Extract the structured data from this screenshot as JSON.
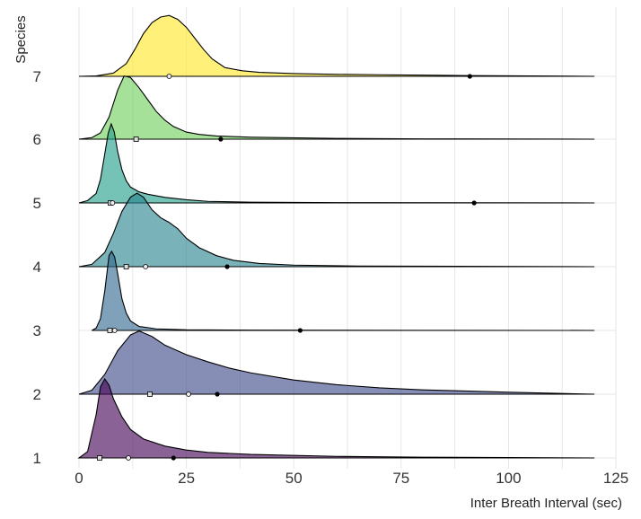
{
  "chart_data": {
    "type": "ridgeline",
    "xlabel": "Inter Breath Interval (sec)",
    "ylabel": "Species",
    "xlim": [
      0,
      125
    ],
    "xticks": [
      0,
      25,
      50,
      75,
      100,
      125
    ],
    "grid": true,
    "series": [
      {
        "species": "1",
        "color": "#440154",
        "density": [
          [
            0,
            0
          ],
          [
            2,
            0.08
          ],
          [
            4,
            0.55
          ],
          [
            5,
            0.9
          ],
          [
            6,
            1.0
          ],
          [
            7,
            0.92
          ],
          [
            8,
            0.75
          ],
          [
            10,
            0.52
          ],
          [
            12,
            0.36
          ],
          [
            15,
            0.24
          ],
          [
            20,
            0.15
          ],
          [
            25,
            0.1
          ],
          [
            30,
            0.07
          ],
          [
            40,
            0.045
          ],
          [
            60,
            0.02
          ],
          [
            80,
            0.01
          ],
          [
            100,
            0.005
          ],
          [
            120,
            0
          ]
        ],
        "markers": [
          {
            "shape": "square",
            "x": 4.8
          },
          {
            "shape": "circle",
            "x": 11.5
          },
          {
            "shape": "dot",
            "x": 22
          }
        ]
      },
      {
        "species": "2",
        "color": "#3e4989",
        "density": [
          [
            0,
            0
          ],
          [
            3,
            0.05
          ],
          [
            6,
            0.25
          ],
          [
            9,
            0.55
          ],
          [
            12,
            0.75
          ],
          [
            14,
            0.8
          ],
          [
            17,
            0.73
          ],
          [
            20,
            0.62
          ],
          [
            25,
            0.5
          ],
          [
            30,
            0.41
          ],
          [
            35,
            0.33
          ],
          [
            40,
            0.27
          ],
          [
            50,
            0.18
          ],
          [
            60,
            0.12
          ],
          [
            70,
            0.08
          ],
          [
            80,
            0.055
          ],
          [
            100,
            0.025
          ],
          [
            120,
            0
          ]
        ],
        "markers": [
          {
            "shape": "square",
            "x": 16.5
          },
          {
            "shape": "circle",
            "x": 25.5
          },
          {
            "shape": "dot",
            "x": 32.2
          }
        ]
      },
      {
        "species": "3",
        "color": "#31688e",
        "density": [
          [
            3,
            0
          ],
          [
            4,
            0.03
          ],
          [
            5,
            0.15
          ],
          [
            6,
            0.5
          ],
          [
            7,
            0.95
          ],
          [
            7.6,
            1.0
          ],
          [
            8.3,
            0.93
          ],
          [
            9,
            0.72
          ],
          [
            10,
            0.4
          ],
          [
            11,
            0.22
          ],
          [
            12,
            0.12
          ],
          [
            14,
            0.05
          ],
          [
            18,
            0.02
          ],
          [
            25,
            0.008
          ],
          [
            40,
            0.004
          ],
          [
            60,
            0.002
          ],
          [
            80,
            0.001
          ],
          [
            120,
            0
          ]
        ],
        "markers": [
          {
            "shape": "square",
            "x": 7.2
          },
          {
            "shape": "circle",
            "x": 8.3
          },
          {
            "shape": "dot",
            "x": 51.5
          }
        ]
      },
      {
        "species": "4",
        "color": "#26828e",
        "density": [
          [
            0,
            0
          ],
          [
            3,
            0.03
          ],
          [
            6,
            0.18
          ],
          [
            8,
            0.42
          ],
          [
            10,
            0.7
          ],
          [
            12,
            0.88
          ],
          [
            13.5,
            0.93
          ],
          [
            15,
            0.88
          ],
          [
            17,
            0.72
          ],
          [
            19,
            0.62
          ],
          [
            21,
            0.56
          ],
          [
            23,
            0.48
          ],
          [
            25,
            0.36
          ],
          [
            28,
            0.24
          ],
          [
            32,
            0.14
          ],
          [
            36,
            0.08
          ],
          [
            42,
            0.04
          ],
          [
            50,
            0.02
          ],
          [
            65,
            0.008
          ],
          [
            120,
            0
          ]
        ],
        "markers": [
          {
            "shape": "square",
            "x": 11
          },
          {
            "shape": "circle",
            "x": 15.5
          },
          {
            "shape": "dot",
            "x": 34.5
          }
        ]
      },
      {
        "species": "5",
        "color": "#1f9e89",
        "density": [
          [
            0,
            0
          ],
          [
            2,
            0.03
          ],
          [
            4,
            0.12
          ],
          [
            5,
            0.3
          ],
          [
            6,
            0.62
          ],
          [
            6.8,
            0.88
          ],
          [
            7.5,
            1.0
          ],
          [
            8.2,
            0.9
          ],
          [
            9,
            0.65
          ],
          [
            10,
            0.42
          ],
          [
            11,
            0.28
          ],
          [
            12,
            0.2
          ],
          [
            14,
            0.14
          ],
          [
            16,
            0.11
          ],
          [
            18,
            0.09
          ],
          [
            20,
            0.07
          ],
          [
            25,
            0.04
          ],
          [
            30,
            0.02
          ],
          [
            40,
            0.01
          ],
          [
            60,
            0.004
          ],
          [
            120,
            0
          ]
        ],
        "markers": [
          {
            "shape": "square",
            "x": 7.3
          },
          {
            "shape": "circle",
            "x": 7.8
          },
          {
            "shape": "dot",
            "x": 92
          }
        ]
      },
      {
        "species": "6",
        "color": "#6ece58",
        "density": [
          [
            0,
            0
          ],
          [
            3,
            0.02
          ],
          [
            5,
            0.08
          ],
          [
            7,
            0.28
          ],
          [
            9,
            0.62
          ],
          [
            10.5,
            0.8
          ],
          [
            12,
            0.78
          ],
          [
            14,
            0.65
          ],
          [
            16,
            0.5
          ],
          [
            18,
            0.35
          ],
          [
            20,
            0.24
          ],
          [
            22,
            0.16
          ],
          [
            25,
            0.09
          ],
          [
            28,
            0.06
          ],
          [
            32,
            0.04
          ],
          [
            40,
            0.025
          ],
          [
            60,
            0.01
          ],
          [
            80,
            0.004
          ],
          [
            120,
            0
          ]
        ],
        "markers": [
          {
            "shape": "square",
            "x": 13.3
          },
          {
            "shape": "dot",
            "x": 33
          }
        ]
      },
      {
        "species": "7",
        "color": "#fde725",
        "density": [
          [
            0,
            0
          ],
          [
            4,
            0.005
          ],
          [
            8,
            0.04
          ],
          [
            11,
            0.16
          ],
          [
            13,
            0.34
          ],
          [
            15,
            0.54
          ],
          [
            17,
            0.68
          ],
          [
            19,
            0.75
          ],
          [
            21,
            0.77
          ],
          [
            23,
            0.72
          ],
          [
            25,
            0.62
          ],
          [
            27,
            0.48
          ],
          [
            29,
            0.34
          ],
          [
            31,
            0.22
          ],
          [
            34,
            0.11
          ],
          [
            38,
            0.07
          ],
          [
            42,
            0.05
          ],
          [
            50,
            0.035
          ],
          [
            60,
            0.025
          ],
          [
            70,
            0.02
          ],
          [
            80,
            0.015
          ],
          [
            90,
            0.01
          ],
          [
            100,
            0.007
          ],
          [
            110,
            0.004
          ],
          [
            120,
            0
          ]
        ],
        "markers": [
          {
            "shape": "circle",
            "x": 21
          },
          {
            "shape": "dot",
            "x": 91
          }
        ]
      }
    ]
  }
}
